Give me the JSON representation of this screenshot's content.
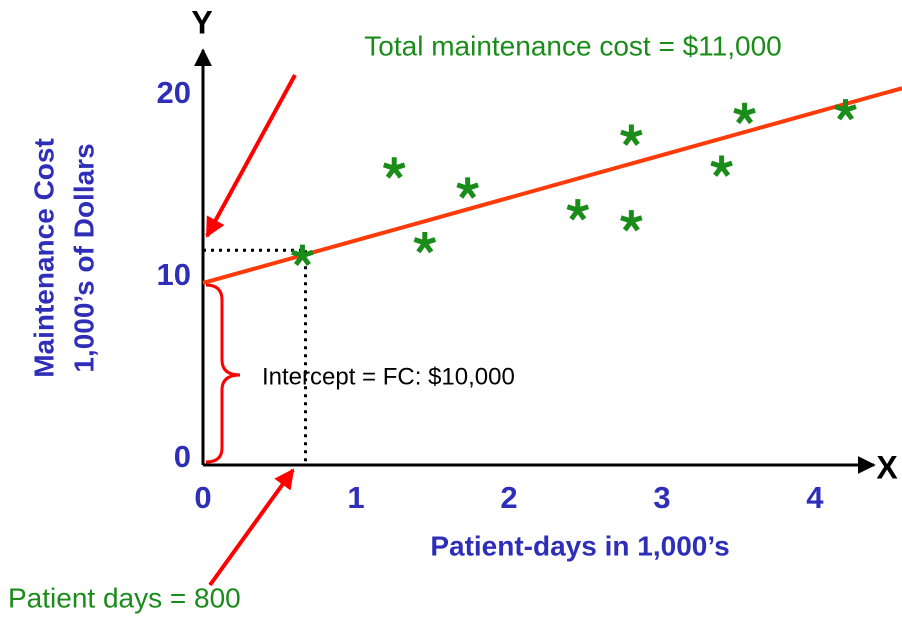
{
  "chart_data": {
    "type": "scatter",
    "x_axis_letter": "X",
    "y_axis_letter": "Y",
    "xlabel": "Patient-days in 1,000’s",
    "ylabel": [
      "Maintenance Cost",
      "1,000’s of Dollars"
    ],
    "xlim": [
      0,
      4.36
    ],
    "ylim": [
      0,
      22.8
    ],
    "xticks": [
      0,
      1,
      2,
      3,
      4
    ],
    "yticks": [
      0,
      10,
      20
    ],
    "grid": false,
    "points": {
      "color": "#1a8c1a",
      "x": [
        0.65,
        1.25,
        1.45,
        1.73,
        2.45,
        2.8,
        2.8,
        3.39,
        3.54,
        4.2
      ],
      "y": [
        11.5,
        16.3,
        12.2,
        15.2,
        14.0,
        18.1,
        13.4,
        16.4,
        19.3,
        19.5
      ]
    },
    "fit_line": {
      "color": "#ff3b0a",
      "x": [
        0,
        4.57
      ],
      "y": [
        10,
        20.7
      ]
    },
    "guide": {
      "x": 0.67,
      "y": 11.8
    },
    "annotations": {
      "total_cost": "Total maintenance cost = $11,000",
      "intercept": "Intercept = FC: $10,000",
      "patient_days": "Patient days = 800"
    }
  }
}
